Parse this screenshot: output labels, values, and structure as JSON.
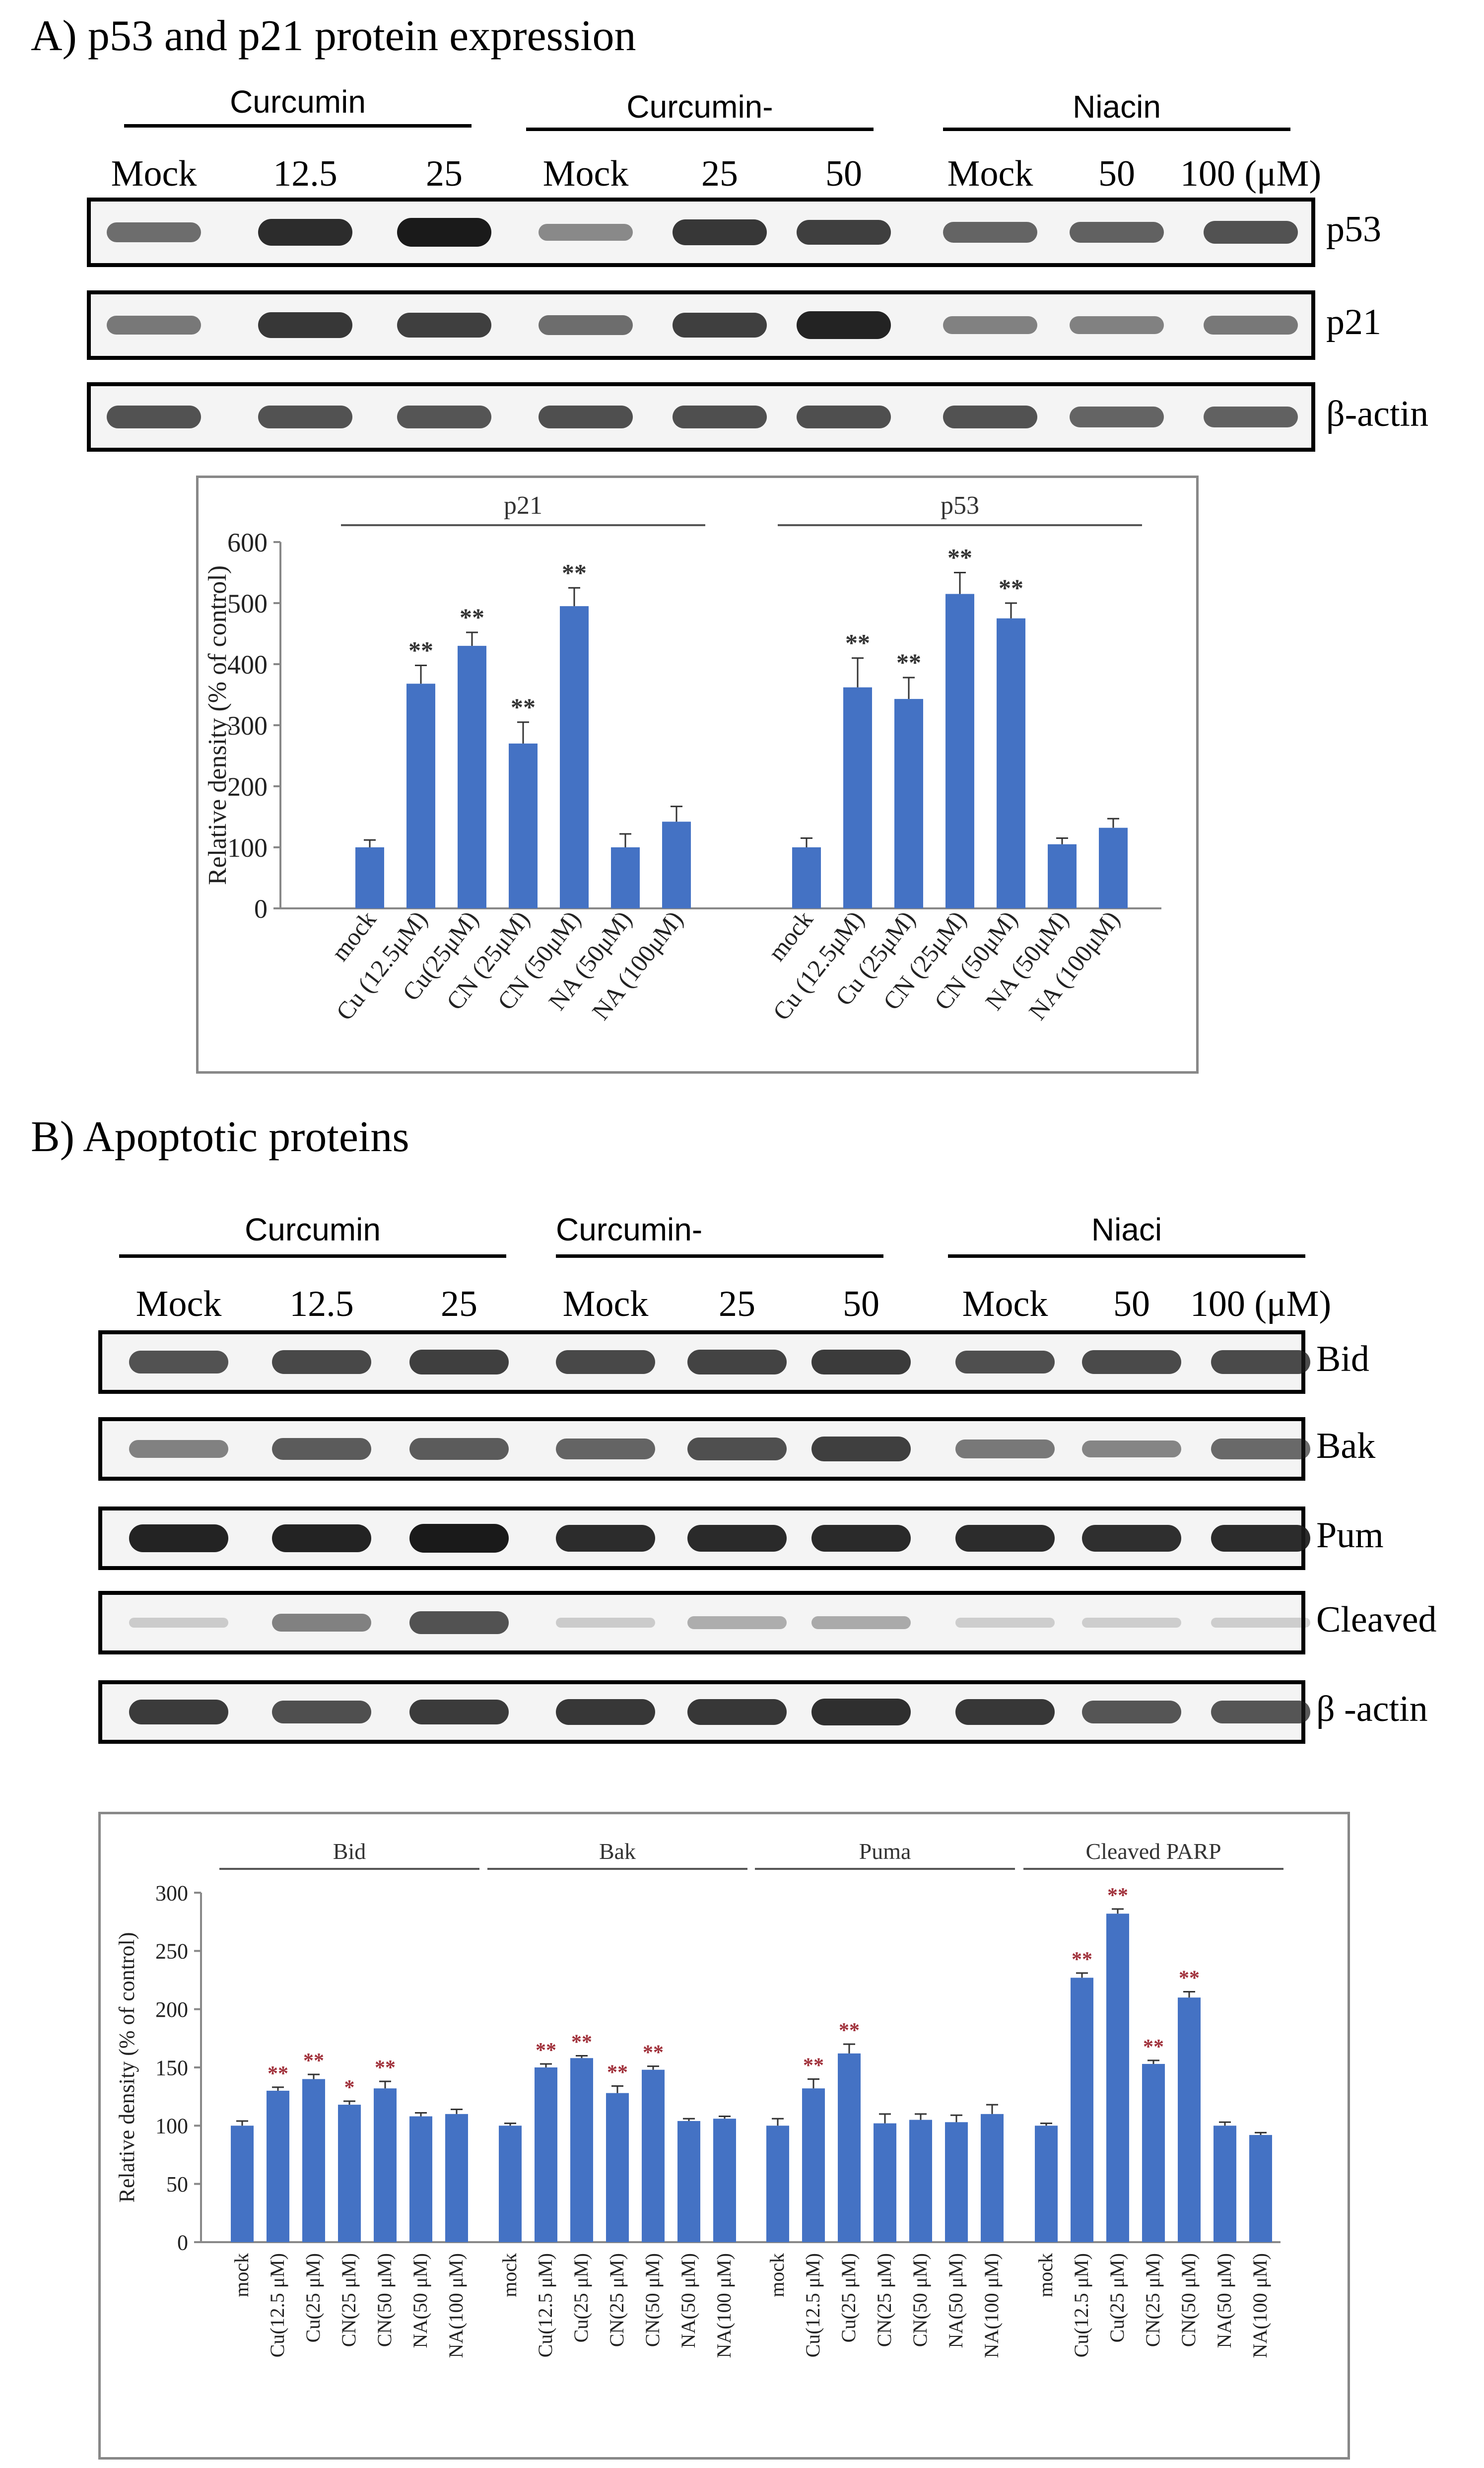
{
  "section_a": {
    "title": "A) p53 and p21 protein expression",
    "groups": [
      "Curcumin",
      "Curcumin-",
      "Niacin"
    ],
    "lanes": [
      "Mock",
      "12.5",
      "25",
      "Mock",
      "25",
      "50",
      "Mock",
      "50",
      "100 (μM)"
    ],
    "blots": [
      {
        "label": "p53",
        "intensity": [
          0.55,
          0.9,
          1.0,
          0.4,
          0.85,
          0.8,
          0.6,
          0.62,
          0.7
        ]
      },
      {
        "label": "p21",
        "intensity": [
          0.5,
          0.85,
          0.8,
          0.55,
          0.8,
          0.95,
          0.45,
          0.45,
          0.5
        ]
      },
      {
        "label": "β-actin",
        "intensity": [
          0.7,
          0.7,
          0.68,
          0.72,
          0.72,
          0.72,
          0.7,
          0.6,
          0.62
        ]
      }
    ]
  },
  "section_b": {
    "title": "B) Apoptotic proteins",
    "groups": [
      "Curcumin",
      "Curcumin-",
      "Niaci"
    ],
    "lanes": [
      "Mock",
      "12.5",
      "25",
      "Mock",
      "25",
      "50",
      "Mock",
      "50",
      "100 (μM)"
    ],
    "blots": [
      {
        "label": "Bid",
        "intensity": [
          0.7,
          0.75,
          0.8,
          0.75,
          0.78,
          0.82,
          0.72,
          0.74,
          0.74
        ]
      },
      {
        "label": "Bak",
        "intensity": [
          0.45,
          0.65,
          0.65,
          0.6,
          0.72,
          0.8,
          0.5,
          0.42,
          0.58
        ]
      },
      {
        "label": "Pum",
        "intensity": [
          0.95,
          0.95,
          1.0,
          0.9,
          0.92,
          0.92,
          0.9,
          0.88,
          0.9
        ]
      },
      {
        "label": "Cleaved",
        "intensity": [
          0.05,
          0.45,
          0.7,
          0.05,
          0.2,
          0.22,
          0.03,
          0.03,
          0.03
        ]
      },
      {
        "label": "β -actin",
        "intensity": [
          0.82,
          0.72,
          0.82,
          0.85,
          0.85,
          0.88,
          0.85,
          0.68,
          0.68
        ]
      }
    ]
  },
  "chart_data": [
    {
      "type": "bar",
      "title": "",
      "ylabel": "Relative density (% of control)",
      "xlabel": "",
      "ylim": [
        0,
        600
      ],
      "yticks": [
        0,
        100,
        200,
        300,
        400,
        500,
        600
      ],
      "bar_color": "#4472c4",
      "groups": [
        {
          "name": "p21",
          "categories": [
            "mock",
            "Cu (12.5μM)",
            "Cu(25μM)",
            "CN (25μM)",
            "CN (50μM)",
            "NA (50μM)",
            "NA (100μM)"
          ],
          "values": [
            100,
            368,
            430,
            270,
            495,
            100,
            142
          ],
          "errors": [
            12,
            30,
            22,
            35,
            30,
            22,
            25
          ],
          "significance": [
            "",
            "**",
            "**",
            "**",
            "**",
            "",
            ""
          ]
        },
        {
          "name": "p53",
          "categories": [
            "mock",
            "Cu (12.5μM)",
            "Cu (25μM)",
            "CN (25μM)",
            "CN (50μM)",
            "NA (50μM)",
            "NA (100μM)"
          ],
          "values": [
            100,
            362,
            343,
            515,
            475,
            105,
            132
          ],
          "errors": [
            15,
            48,
            35,
            35,
            25,
            10,
            15
          ],
          "significance": [
            "",
            "**",
            "**",
            "**",
            "**",
            "",
            ""
          ]
        }
      ]
    },
    {
      "type": "bar",
      "title": "",
      "ylabel": "Relative density (% of control)",
      "xlabel": "",
      "ylim": [
        0,
        300
      ],
      "yticks": [
        0,
        50,
        100,
        150,
        200,
        250,
        300
      ],
      "bar_color": "#4472c4",
      "groups": [
        {
          "name": "Bid",
          "categories": [
            "mock",
            "Cu(12.5 μM)",
            "Cu(25 μM)",
            "CN(25 μM)",
            "CN(50 μM)",
            "NA(50 μM)",
            "NA(100 μM)"
          ],
          "values": [
            100,
            130,
            140,
            118,
            132,
            108,
            110
          ],
          "errors": [
            4,
            3,
            4,
            3,
            6,
            3,
            4
          ],
          "significance": [
            "",
            "**",
            "**",
            "*",
            "**",
            "",
            ""
          ]
        },
        {
          "name": "Bak",
          "categories": [
            "mock",
            "Cu(12.5 μM)",
            "Cu(25 μM)",
            "CN(25 μM)",
            "CN(50 μM)",
            "NA(50 μM)",
            "NA(100 μM)"
          ],
          "values": [
            100,
            150,
            158,
            128,
            148,
            104,
            106
          ],
          "errors": [
            2,
            3,
            2,
            6,
            3,
            2,
            2
          ],
          "significance": [
            "",
            "**",
            "**",
            "**",
            "**",
            "",
            ""
          ]
        },
        {
          "name": "Puma",
          "categories": [
            "mock",
            "Cu(12.5 μM)",
            "Cu(25 μM)",
            "CN(25 μM)",
            "CN(50 μM)",
            "NA(50 μM)",
            "NA(100 μM)"
          ],
          "values": [
            100,
            132,
            162,
            102,
            105,
            103,
            110
          ],
          "errors": [
            6,
            8,
            8,
            8,
            5,
            6,
            8
          ],
          "significance": [
            "",
            "**",
            "**",
            "",
            "",
            "",
            ""
          ]
        },
        {
          "name": "Cleaved PARP",
          "categories": [
            "mock",
            "Cu(12.5 μM)",
            "Cu(25 μM)",
            "CN(25 μM)",
            "CN(50 μM)",
            "NA(50 μM)",
            "NA(100 μM)"
          ],
          "values": [
            100,
            227,
            282,
            153,
            210,
            100,
            92
          ],
          "errors": [
            2,
            4,
            4,
            3,
            5,
            3,
            2
          ],
          "significance": [
            "",
            "**",
            "**",
            "**",
            "**",
            "",
            ""
          ]
        }
      ]
    }
  ]
}
